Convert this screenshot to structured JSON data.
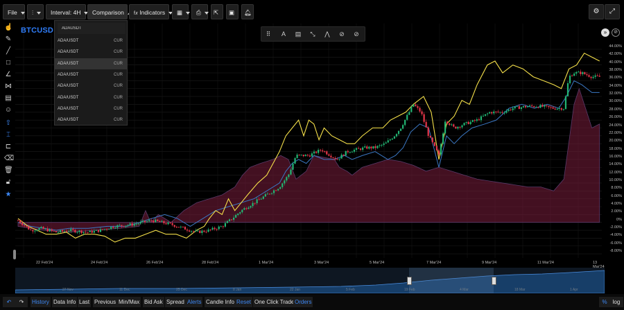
{
  "toolbar": {
    "file_label": "File",
    "interval_label": "Interval: 4H",
    "comparison_label": "Comparison",
    "indicators_label": "Indicators",
    "icons": [
      "chart-type-icon",
      "grid-layout-icon",
      "print-icon",
      "share-icon",
      "save-icon",
      "bell-icon",
      "settings-icon",
      "fullscreen-icon"
    ]
  },
  "chart": {
    "symbol": "BTCUSD",
    "y_labels": [
      "44.00%",
      "42.00%",
      "40.00%",
      "38.00%",
      "36.00%",
      "34.00%",
      "32.00%",
      "30.00%",
      "28.00%",
      "26.00%",
      "24.00%",
      "22.00%",
      "20.00%",
      "18.00%",
      "16.00%",
      "14.00%",
      "12.00%",
      "10.00%",
      "8.00%",
      "6.00%",
      "4.00%",
      "2.00%",
      "0%",
      "-2.00%",
      "-4.00%",
      "-6.00%",
      "-8.00%"
    ],
    "x_labels": [
      "22 Feb'24",
      "24 Feb'24",
      "26 Feb'24",
      "28 Feb'24",
      "1 Mar'24",
      "3 Mar'24",
      "5 Mar'24",
      "7 Mar'24",
      "9 Mar'24",
      "11 Mar'24",
      "13 Mar'24"
    ],
    "colors": {
      "up": "#22b573",
      "down": "#e8364a",
      "yellow": "#f5e04a",
      "blue": "#3b78c4",
      "area": "#7a1e3c"
    }
  },
  "dropdown": {
    "search_value": "ADAUSDT",
    "items": [
      {
        "name": "ADA/USDT",
        "tag": "CUR"
      },
      {
        "name": "ADA/USDT",
        "tag": "CUR"
      },
      {
        "name": "ADA/USDT",
        "tag": "CUR"
      },
      {
        "name": "ADA/USDT",
        "tag": "CUR"
      },
      {
        "name": "ADA/USDT",
        "tag": "CUR"
      },
      {
        "name": "ADA/USDT",
        "tag": "CUR"
      },
      {
        "name": "ADA/USDT",
        "tag": "CUR"
      },
      {
        "name": "ADA/USDT",
        "tag": "CUR"
      }
    ]
  },
  "navigator": {
    "labels": [
      "27 Nov",
      "11 Dec",
      "25 Dec",
      "8 Jan",
      "22 Jan",
      "5 Feb",
      "19 Feb",
      "4 Mar",
      "18 Mar",
      "1 Apr"
    ]
  },
  "bottom": {
    "buttons": [
      {
        "label": "History",
        "blue": true
      },
      {
        "label": "Data Info",
        "blue": false
      },
      {
        "label": "Last",
        "blue": false
      },
      {
        "label": "Previous",
        "blue": false
      },
      {
        "label": "Min/Max",
        "blue": false
      },
      {
        "label": "Bid Ask",
        "blue": false
      },
      {
        "label": "Spread",
        "blue": false
      },
      {
        "label": "Alerts",
        "blue": true
      },
      {
        "label": "Candle Info",
        "blue": false
      },
      {
        "label": "Reset",
        "blue": true
      },
      {
        "label": "One Click Trade",
        "blue": false
      },
      {
        "label": "Orders",
        "blue": true
      }
    ],
    "percent_label": "%",
    "log_label": "log"
  }
}
